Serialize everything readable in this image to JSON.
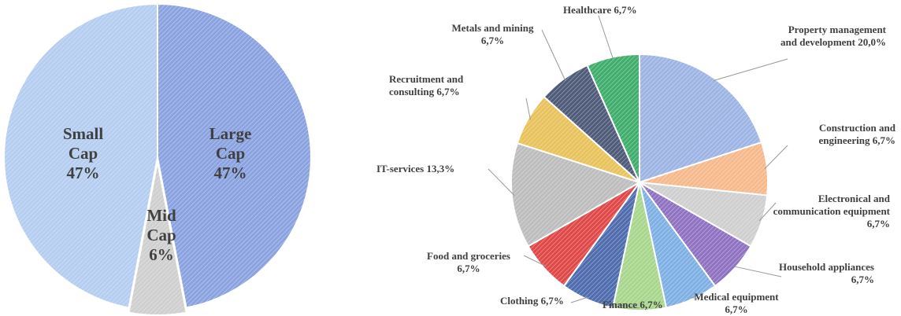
{
  "chart_data": [
    {
      "type": "pie",
      "categories": [
        "Large Cap",
        "Mid Cap",
        "Small Cap"
      ],
      "values": [
        47,
        6,
        47
      ],
      "value_labels": [
        "47%",
        "6%",
        "47%"
      ],
      "colors": [
        "#8aa2e0",
        "#cfcfcf",
        "#b4cdf0"
      ]
    },
    {
      "type": "pie",
      "categories": [
        "Property management and development",
        "Construction and engineering",
        "Electronical and communication equipment",
        "Household appliances",
        "Medical equipment",
        "Finance",
        "Clothing",
        "Food and groceries",
        "IT-services",
        "Recruitment and consulting",
        "Metals and mining",
        "Healthcare"
      ],
      "values": [
        20.0,
        6.7,
        6.7,
        6.7,
        6.7,
        6.7,
        6.7,
        6.7,
        13.3,
        6.7,
        6.7,
        6.7
      ],
      "value_labels": [
        "20,0%",
        "6,7%",
        "6,7%",
        "6,7%",
        "6,7%",
        "6,7%",
        "6,7%",
        "6,7%",
        "13,3%",
        "6,7%",
        "6,7%",
        "6,7%"
      ],
      "colors": [
        "#9db4e4",
        "#f6b98c",
        "#cfcfcf",
        "#9072c2",
        "#7eb0e4",
        "#a8d68c",
        "#4e6cae",
        "#e04848",
        "#bdbdbd",
        "#e8c25a",
        "#4f5b78",
        "#3fae6c"
      ]
    }
  ]
}
